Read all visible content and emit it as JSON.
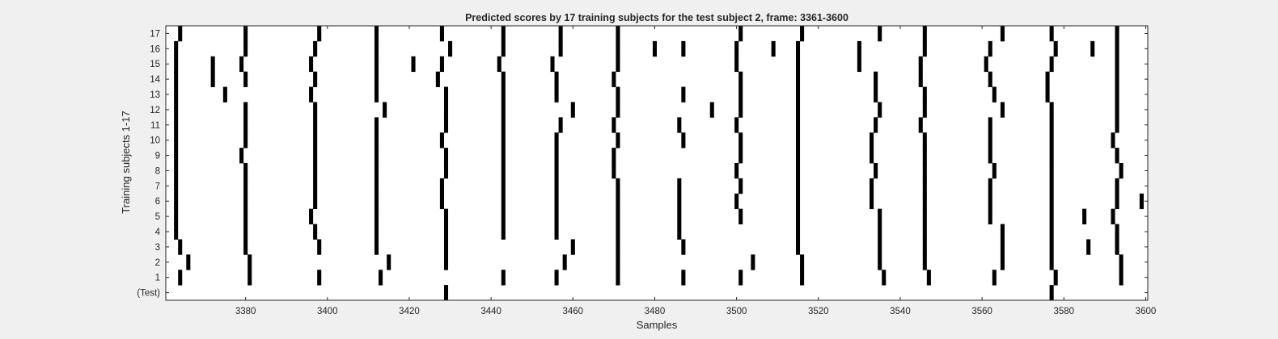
{
  "chart_data": {
    "type": "heatmap",
    "title": "Predicted scores by 17 training subjects for the test subject 2, frame: 3361-3600",
    "xlabel": "Samples",
    "ylabel": "Training subjects 1-17",
    "xlim": [
      3361,
      3600
    ],
    "x_ticks": [
      3380,
      3400,
      3420,
      3440,
      3460,
      3480,
      3500,
      3520,
      3540,
      3560,
      3580,
      3600
    ],
    "rows": [
      "(Test)",
      "1",
      "2",
      "3",
      "4",
      "5",
      "6",
      "7",
      "8",
      "9",
      "10",
      "11",
      "12",
      "13",
      "14",
      "15",
      "16",
      "17"
    ],
    "marks": {
      "(Test)": [
        3429,
        3577
      ],
      "1": [
        3364,
        3381,
        3398,
        3413,
        3443,
        3456,
        3471,
        3487,
        3501,
        3516,
        3536,
        3547,
        3563,
        3578,
        3594
      ],
      "2": [
        3366,
        3381,
        3415,
        3429,
        3458,
        3471,
        3504,
        3516,
        3535,
        3546,
        3565,
        3577,
        3594
      ],
      "3": [
        3364,
        3380,
        3398,
        3412,
        3429,
        3460,
        3471,
        3487,
        3515,
        3535,
        3546,
        3565,
        3577,
        3586,
        3593
      ],
      "4": [
        3363,
        3380,
        3397,
        3412,
        3429,
        3443,
        3456,
        3471,
        3486,
        3515,
        3535,
        3546,
        3565,
        3577,
        3593
      ],
      "5": [
        3363,
        3380,
        3396,
        3412,
        3429,
        3443,
        3456,
        3471,
        3486,
        3501,
        3515,
        3535,
        3546,
        3562,
        3577,
        3585,
        3592
      ],
      "6": [
        3363,
        3380,
        3397,
        3412,
        3428,
        3443,
        3456,
        3471,
        3486,
        3500,
        3515,
        3533,
        3546,
        3562,
        3577,
        3593,
        3599
      ],
      "7": [
        3363,
        3380,
        3397,
        3412,
        3428,
        3443,
        3456,
        3471,
        3486,
        3501,
        3515,
        3533,
        3546,
        3562,
        3577,
        3593
      ],
      "8": [
        3363,
        3380,
        3397,
        3412,
        3429,
        3443,
        3456,
        3470,
        3500,
        3515,
        3534,
        3546,
        3563,
        3577,
        3594
      ],
      "9": [
        3363,
        3379,
        3397,
        3412,
        3429,
        3443,
        3456,
        3470,
        3501,
        3515,
        3533,
        3546,
        3562,
        3577,
        3593
      ],
      "10": [
        3363,
        3380,
        3397,
        3412,
        3428,
        3443,
        3456,
        3471,
        3487,
        3501,
        3515,
        3533,
        3546,
        3562,
        3577,
        3592
      ],
      "11": [
        3363,
        3380,
        3397,
        3412,
        3429,
        3443,
        3457,
        3470,
        3486,
        3500,
        3515,
        3534,
        3545,
        3562,
        3577,
        3593
      ],
      "12": [
        3363,
        3380,
        3397,
        3414,
        3429,
        3443,
        3460,
        3471,
        3494,
        3501,
        3515,
        3535,
        3546,
        3565,
        3577,
        3593
      ],
      "13": [
        3363,
        3375,
        3396,
        3412,
        3429,
        3443,
        3456,
        3471,
        3487,
        3501,
        3515,
        3534,
        3546,
        3563,
        3576,
        3593
      ],
      "14": [
        3363,
        3372,
        3380,
        3397,
        3412,
        3427,
        3443,
        3456,
        3470,
        3501,
        3515,
        3534,
        3545,
        3562,
        3576,
        3593
      ],
      "15": [
        3363,
        3372,
        3379,
        3396,
        3412,
        3421,
        3428,
        3442,
        3455,
        3471,
        3500,
        3515,
        3530,
        3545,
        3561,
        3577,
        3593
      ],
      "16": [
        3363,
        3380,
        3397,
        3412,
        3430,
        3443,
        3457,
        3471,
        3480,
        3487,
        3500,
        3509,
        3515,
        3530,
        3546,
        3562,
        3578,
        3587,
        3593
      ],
      "17": [
        3364,
        3380,
        3398,
        3412,
        3428,
        3443,
        3457,
        3471,
        3501,
        3516,
        3535,
        3546,
        3565,
        3577,
        3593
      ]
    },
    "grid": false,
    "colors": {
      "mark": "#000000",
      "background": "#ffffff",
      "figure": "#f0f0f0"
    }
  }
}
